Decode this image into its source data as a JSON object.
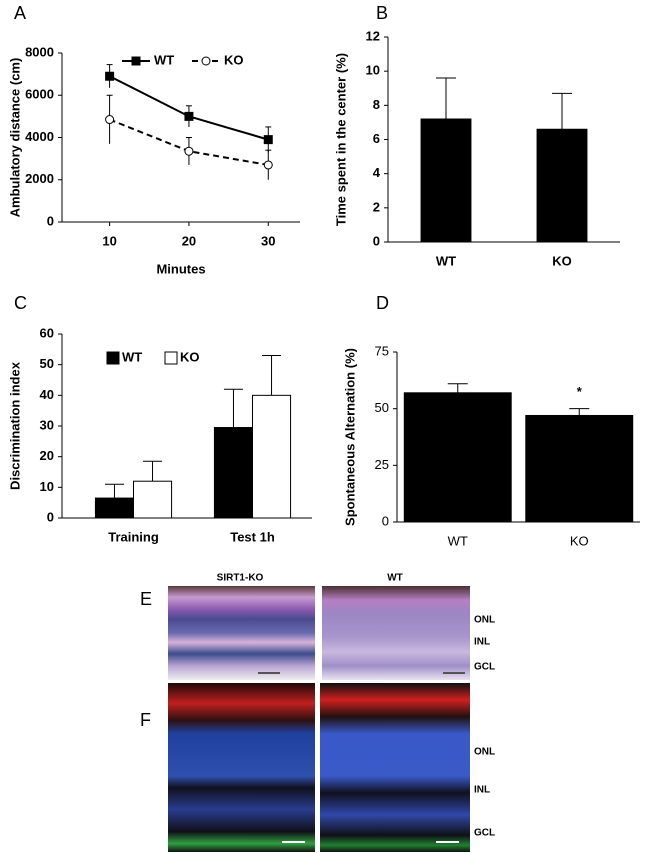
{
  "chart_data": [
    {
      "type": "line",
      "label": "A",
      "x_label": "Minutes",
      "y_label": "Ambulatory distance (cm)",
      "x": [
        10,
        20,
        30
      ],
      "xlim": [
        4,
        34
      ],
      "xticks": [
        10,
        20,
        30
      ],
      "ylim": [
        0,
        8000
      ],
      "yticks": [
        0,
        2000,
        4000,
        6000,
        8000
      ],
      "legend": "upper left",
      "series": [
        {
          "name": "WT",
          "color": "#000000",
          "line_style": "solid",
          "marker": "square",
          "marker_fill": "#000000",
          "values": [
            6900,
            5000,
            3900
          ],
          "errors": [
            550,
            500,
            600
          ]
        },
        {
          "name": "KO",
          "color": "#000000",
          "line_style": "dashed",
          "marker": "circle",
          "marker_fill": "#ffffff",
          "values": [
            4850,
            3350,
            2700
          ],
          "errors": [
            1150,
            650,
            700
          ]
        }
      ]
    },
    {
      "type": "bar",
      "label": "B",
      "y_label": "Time spent in the center (%)",
      "categories": [
        "WT",
        "KO"
      ],
      "values": [
        7.2,
        6.6
      ],
      "errors": [
        2.4,
        2.1
      ],
      "color": "#000000",
      "ylim": [
        0,
        12
      ],
      "yticks": [
        0,
        2,
        4,
        6,
        8,
        10,
        12
      ]
    },
    {
      "type": "bar",
      "label": "C",
      "y_label": "Discrimination index",
      "categories": [
        "Training",
        "Test 1h"
      ],
      "ylim": [
        0,
        60
      ],
      "yticks": [
        0,
        10,
        20,
        30,
        40,
        50,
        60
      ],
      "legend": "upper left",
      "series": [
        {
          "name": "WT",
          "color": "#000000",
          "values": [
            6.5,
            29.5
          ],
          "errors": [
            4.5,
            12.5
          ]
        },
        {
          "name": "KO",
          "color": "#ffffff",
          "values": [
            12,
            40
          ],
          "errors": [
            6.5,
            13
          ]
        }
      ]
    },
    {
      "type": "bar",
      "label": "D",
      "y_label": "Spontaneous Alternation (%)",
      "categories": [
        "WT",
        "KO"
      ],
      "values": [
        57,
        47
      ],
      "errors": [
        4,
        3
      ],
      "color": "#000000",
      "ylim": [
        0,
        75
      ],
      "yticks": [
        0,
        25,
        50,
        75
      ],
      "annotation": "*"
    }
  ],
  "images": {
    "E": {
      "label": "E",
      "titles": [
        "SIRT1-KO",
        "WT"
      ],
      "layers": [
        "ONL",
        "INL",
        "GCL"
      ]
    },
    "F": {
      "label": "F",
      "layers": [
        "ONL",
        "INL",
        "GCL"
      ]
    }
  }
}
